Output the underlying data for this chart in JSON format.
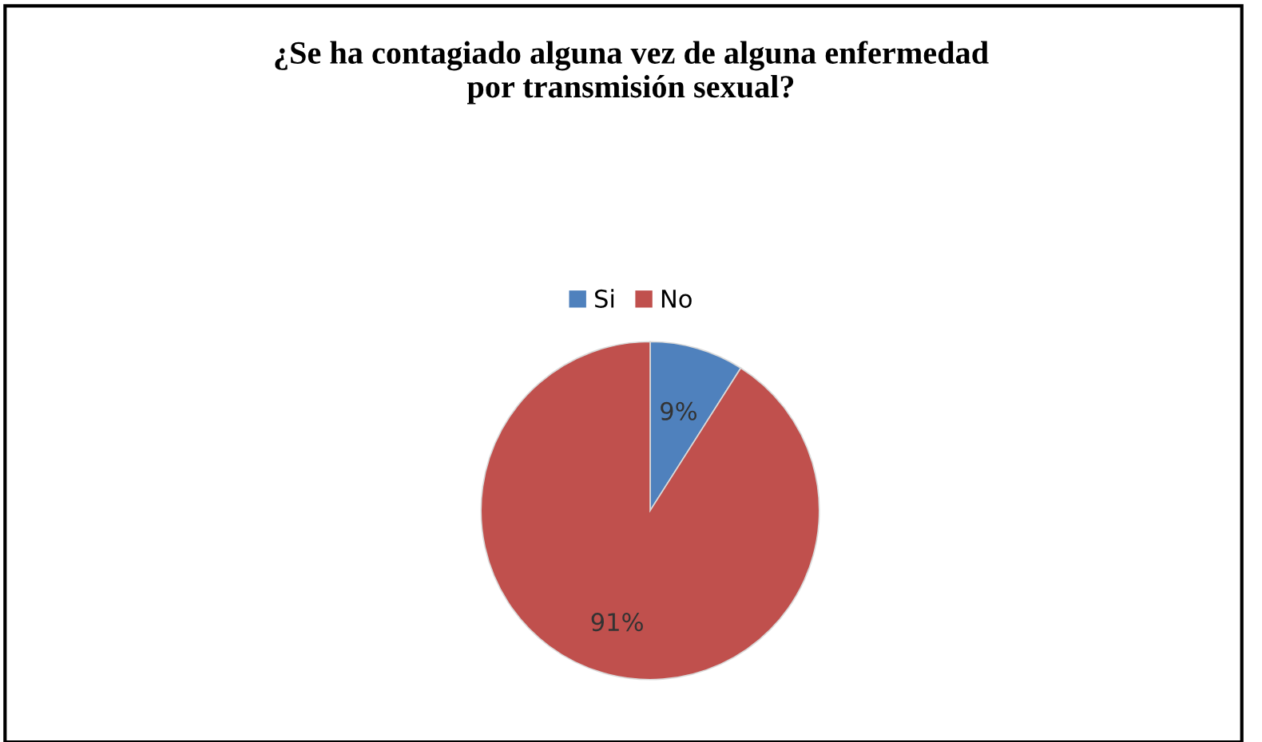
{
  "chart_data": {
    "type": "pie",
    "title": "¿Se ha contagiado alguna vez de alguna enfermedad\npor transmisión sexual?",
    "categories": [
      "Si",
      "No"
    ],
    "values": [
      9,
      91
    ],
    "colors": [
      "#4f81bd",
      "#c0504d"
    ],
    "value_labels": [
      "9%",
      "91%"
    ],
    "legend": "top"
  }
}
